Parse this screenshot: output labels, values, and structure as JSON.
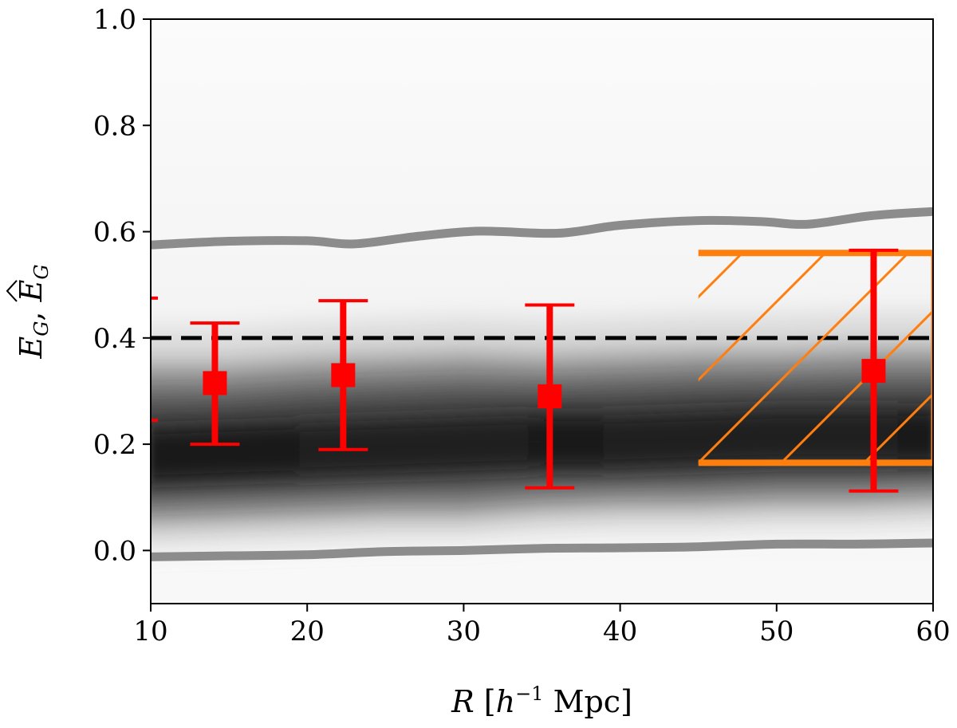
{
  "chart_data": {
    "type": "scatter",
    "xlim": [
      10,
      60
    ],
    "ylim": [
      -0.1,
      1.0
    ],
    "x_ticks": [
      10,
      20,
      30,
      40,
      50,
      60
    ],
    "x_tick_labels": [
      "10",
      "20",
      "30",
      "40",
      "50",
      "60"
    ],
    "y_ticks": [
      0.0,
      0.2,
      0.4,
      0.6,
      0.8,
      1.0
    ],
    "y_tick_labels": [
      "0.0",
      "0.2",
      "0.4",
      "0.6",
      "0.8",
      "1.0"
    ],
    "xlabel_parts": {
      "var": "R",
      "open": " [",
      "h": "h",
      "sup": "−1",
      "unit": " Mpc]"
    },
    "ylabel_parts": {
      "var1": "E",
      "sub1": "G",
      "sep": ", ",
      "var2": "E",
      "sub2": "G"
    },
    "reference_line": {
      "y": 0.4,
      "style": "dashed",
      "color": "#000000"
    },
    "gray_bounds": {
      "color": "#8c8c8c",
      "upper": {
        "x": [
          10,
          15,
          20,
          23,
          27,
          31,
          36,
          40,
          45,
          49,
          52,
          56,
          60
        ],
        "y": [
          0.575,
          0.582,
          0.583,
          0.577,
          0.591,
          0.601,
          0.597,
          0.612,
          0.621,
          0.619,
          0.614,
          0.63,
          0.638
        ]
      },
      "lower": {
        "x": [
          10,
          15,
          20,
          25,
          30,
          35,
          40,
          45,
          50,
          55,
          60
        ],
        "y": [
          -0.012,
          -0.01,
          -0.008,
          -0.002,
          0.0,
          0.004,
          0.005,
          0.007,
          0.012,
          0.012,
          0.014
        ]
      }
    },
    "density_band": {
      "x": [
        10,
        15,
        20,
        25,
        30,
        35,
        40,
        45,
        50,
        55,
        60
      ],
      "center": [
        0.18,
        0.185,
        0.19,
        0.195,
        0.2,
        0.205,
        0.205,
        0.21,
        0.215,
        0.215,
        0.215
      ],
      "inner_upper": [
        0.33,
        0.33,
        0.34,
        0.345,
        0.35,
        0.345,
        0.35,
        0.355,
        0.355,
        0.36,
        0.36
      ],
      "inner_lower": [
        0.065,
        0.07,
        0.075,
        0.08,
        0.08,
        0.09,
        0.095,
        0.095,
        0.1,
        0.1,
        0.105
      ]
    },
    "series": [
      {
        "color": "#ff0000",
        "marker": "square",
        "x": [
          14.1,
          22.3,
          35.5,
          56.2
        ],
        "y": [
          0.315,
          0.33,
          0.29,
          0.338
        ],
        "y_err_low": [
          0.2,
          0.19,
          0.118,
          0.112
        ],
        "y_err_high": [
          0.428,
          0.47,
          0.462,
          0.565
        ]
      }
    ],
    "partial_errorbar": {
      "x": 10.0,
      "y_low": 0.245,
      "y_high": 0.475,
      "color": "#ff0000"
    },
    "hatched_region": {
      "x": [
        45,
        60
      ],
      "y": [
        0.165,
        0.56
      ],
      "color": "#ff7f0e",
      "hatch": "diagonal"
    },
    "grid": false,
    "legend": "none"
  }
}
